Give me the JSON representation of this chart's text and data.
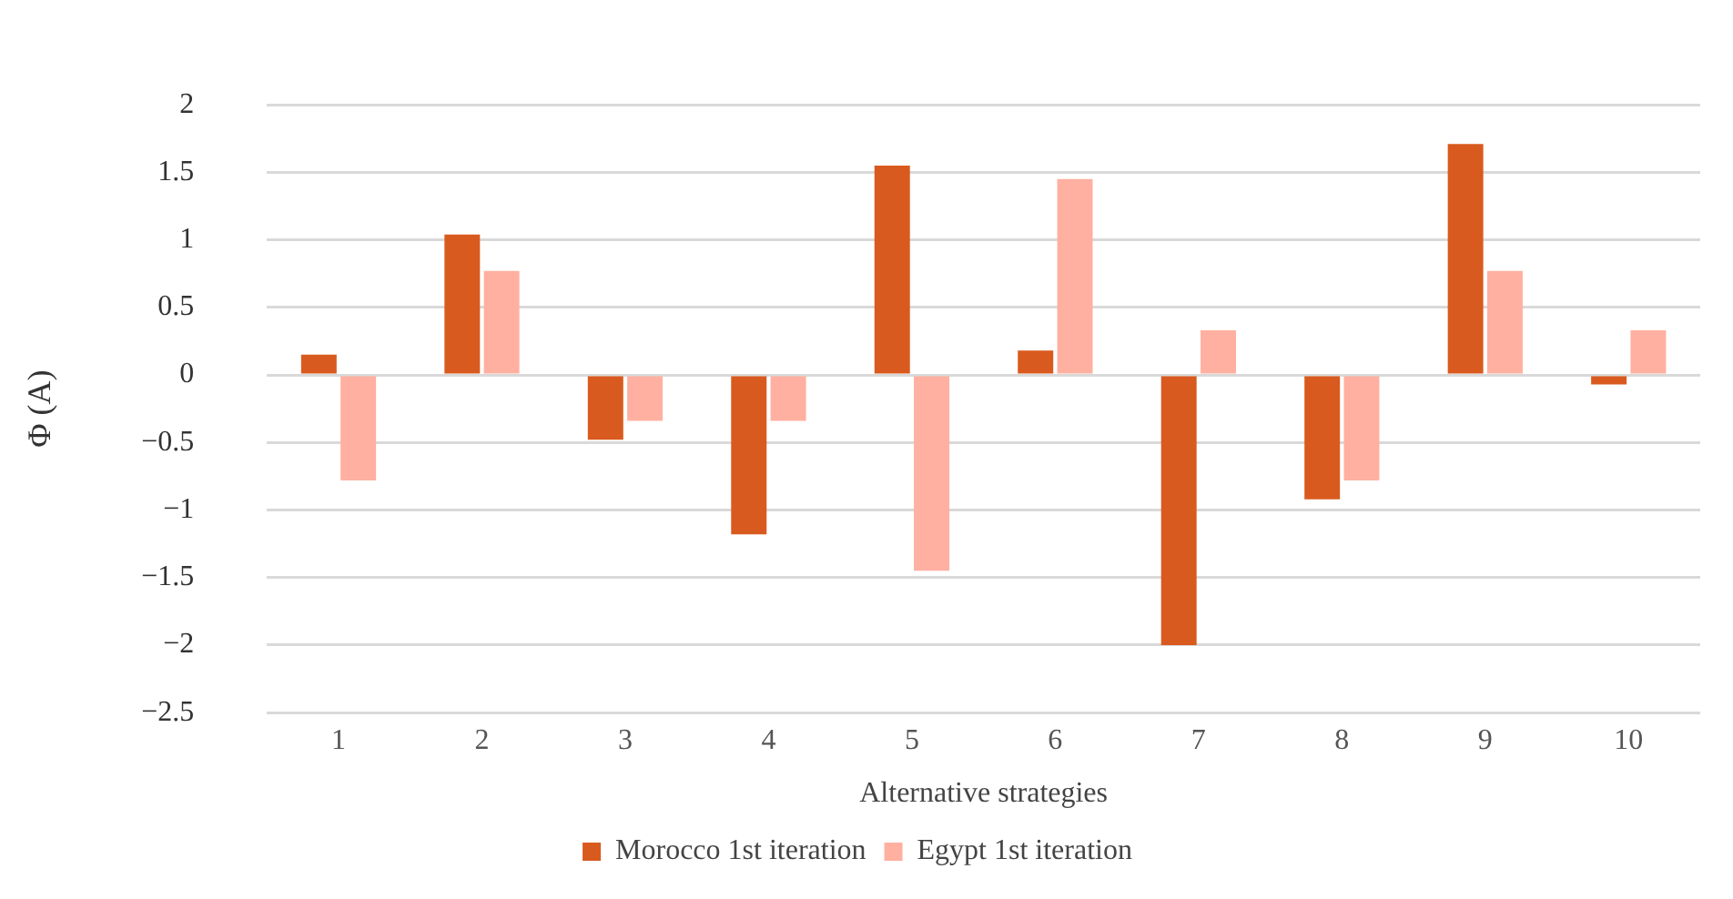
{
  "chart_data": {
    "type": "bar",
    "xlabel": "Alternative strategies",
    "ylabel": "Φ (A)",
    "categories": [
      "1",
      "2",
      "3",
      "4",
      "5",
      "6",
      "7",
      "8",
      "9",
      "10"
    ],
    "series": [
      {
        "name": "Morocco 1st iteration",
        "color": "#d95a1e",
        "values": [
          0.15,
          1.04,
          -0.48,
          -1.18,
          1.55,
          0.18,
          -2.0,
          -0.92,
          1.71,
          -0.07
        ]
      },
      {
        "name": "Egypt 1st iteration",
        "color": "#ffb0a0",
        "values": [
          -0.78,
          0.77,
          -0.34,
          -0.34,
          -1.45,
          1.45,
          0.33,
          -0.78,
          0.77,
          0.33
        ]
      }
    ],
    "ylim": [
      -2.5,
      2
    ],
    "yticks": [
      {
        "value": -2.5,
        "label": "−2.5"
      },
      {
        "value": -2,
        "label": "−2"
      },
      {
        "value": -1.5,
        "label": "−1.5"
      },
      {
        "value": -1,
        "label": "−1"
      },
      {
        "value": -0.5,
        "label": "−0.5"
      },
      0,
      0.5,
      1,
      1.5,
      2
    ],
    "grid": "y",
    "legend": "bottom"
  }
}
